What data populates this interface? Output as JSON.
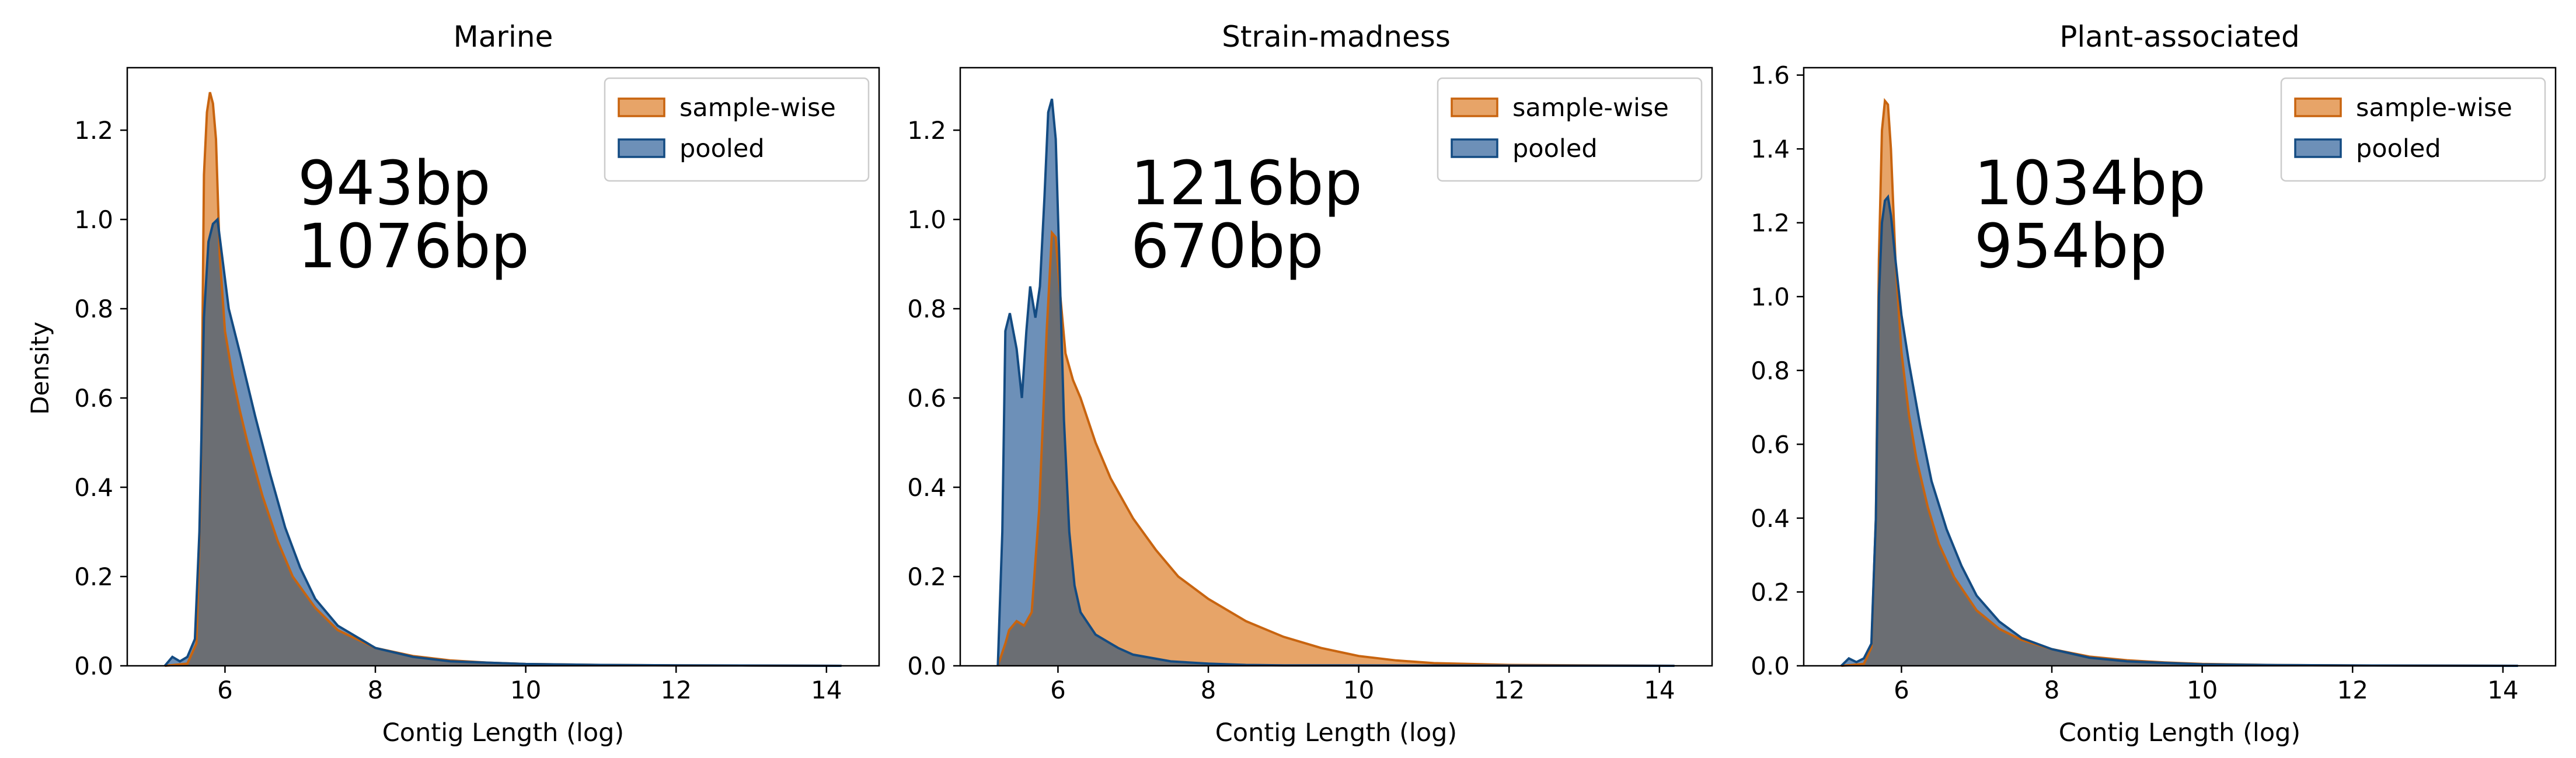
{
  "colors": {
    "sample_wise_fill": "#e7a468",
    "sample_wise_line": "#c8640f",
    "pooled_fill": "#6d90b8",
    "pooled_line": "#134b82",
    "overlap": "#6b6e73"
  },
  "shared": {
    "ylabel": "Density",
    "xlabel": "Contig Length (log)",
    "legend": [
      "sample-wise",
      "pooled"
    ]
  },
  "chart_data": [
    {
      "type": "area",
      "title": "Marine",
      "xlabel": "Contig Length (log)",
      "ylabel": "Density",
      "xlim": [
        4.7,
        14.7
      ],
      "ylim": [
        0,
        1.34
      ],
      "xticks": [
        6,
        8,
        10,
        12,
        14
      ],
      "yticks": [
        0.0,
        0.2,
        0.4,
        0.6,
        0.8,
        1.0,
        1.2
      ],
      "ytick_labels": [
        "0.0",
        "0.2",
        "0.4",
        "0.6",
        "0.8",
        "1.0",
        "1.2"
      ],
      "legend_position": "top-right",
      "annotations": [
        {
          "text": "943bp",
          "series": "sample-wise"
        },
        {
          "text": "1076bp",
          "series": "pooled"
        }
      ],
      "series": [
        {
          "name": "sample-wise",
          "x": [
            5.2,
            5.5,
            5.62,
            5.68,
            5.72,
            5.76,
            5.8,
            5.84,
            5.88,
            5.93,
            6.0,
            6.1,
            6.2,
            6.3,
            6.5,
            6.7,
            6.9,
            7.2,
            7.5,
            8.0,
            8.5,
            9.0,
            9.5,
            10.0,
            11.0,
            12.0,
            13.0,
            14.2
          ],
          "y": [
            0.0,
            0.005,
            0.05,
            0.4,
            1.1,
            1.24,
            1.285,
            1.26,
            1.18,
            0.92,
            0.75,
            0.65,
            0.57,
            0.5,
            0.38,
            0.28,
            0.2,
            0.13,
            0.08,
            0.04,
            0.022,
            0.012,
            0.007,
            0.004,
            0.002,
            0.001,
            0.0005,
            0.0
          ]
        },
        {
          "name": "pooled",
          "x": [
            5.2,
            5.3,
            5.4,
            5.5,
            5.6,
            5.66,
            5.72,
            5.78,
            5.84,
            5.9,
            5.96,
            6.05,
            6.2,
            6.4,
            6.6,
            6.8,
            7.0,
            7.2,
            7.5,
            8.0,
            8.5,
            9.0,
            10.0,
            11.0,
            12.0,
            14.2
          ],
          "y": [
            0.0,
            0.02,
            0.01,
            0.02,
            0.06,
            0.3,
            0.78,
            0.95,
            0.99,
            1.0,
            0.92,
            0.8,
            0.7,
            0.56,
            0.43,
            0.31,
            0.22,
            0.15,
            0.09,
            0.04,
            0.02,
            0.01,
            0.004,
            0.002,
            0.001,
            0.0
          ]
        }
      ]
    },
    {
      "type": "area",
      "title": "Strain-madness",
      "xlabel": "Contig Length (log)",
      "ylabel": "",
      "xlim": [
        4.7,
        14.7
      ],
      "ylim": [
        0,
        1.34
      ],
      "xticks": [
        6,
        8,
        10,
        12,
        14
      ],
      "yticks": [
        0.0,
        0.2,
        0.4,
        0.6,
        0.8,
        1.0,
        1.2
      ],
      "ytick_labels": [
        "0.0",
        "0.2",
        "0.4",
        "0.6",
        "0.8",
        "1.0",
        "1.2"
      ],
      "legend_position": "top-right",
      "annotations": [
        {
          "text": "1216bp",
          "series": "sample-wise"
        },
        {
          "text": "670bp",
          "series": "pooled"
        }
      ],
      "series": [
        {
          "name": "sample-wise",
          "x": [
            5.2,
            5.3,
            5.35,
            5.45,
            5.55,
            5.65,
            5.75,
            5.85,
            5.92,
            5.97,
            6.02,
            6.1,
            6.2,
            6.3,
            6.5,
            6.7,
            7.0,
            7.3,
            7.6,
            8.0,
            8.5,
            9.0,
            9.5,
            10.0,
            10.5,
            11.0,
            12.0,
            13.0,
            14.2
          ],
          "y": [
            0.0,
            0.05,
            0.08,
            0.1,
            0.09,
            0.12,
            0.35,
            0.75,
            0.97,
            0.96,
            0.85,
            0.7,
            0.64,
            0.6,
            0.5,
            0.42,
            0.33,
            0.26,
            0.2,
            0.15,
            0.1,
            0.065,
            0.04,
            0.022,
            0.012,
            0.006,
            0.002,
            0.001,
            0.0
          ]
        },
        {
          "name": "pooled",
          "x": [
            5.2,
            5.26,
            5.3,
            5.36,
            5.45,
            5.52,
            5.58,
            5.63,
            5.7,
            5.76,
            5.82,
            5.87,
            5.92,
            5.97,
            6.02,
            6.08,
            6.15,
            6.22,
            6.3,
            6.5,
            6.8,
            7.0,
            7.5,
            8.0,
            8.5,
            9.0,
            14.2
          ],
          "y": [
            0.0,
            0.3,
            0.75,
            0.79,
            0.71,
            0.6,
            0.75,
            0.85,
            0.78,
            0.85,
            1.05,
            1.24,
            1.27,
            1.18,
            0.9,
            0.55,
            0.3,
            0.18,
            0.12,
            0.07,
            0.04,
            0.025,
            0.01,
            0.005,
            0.002,
            0.001,
            0.0
          ]
        }
      ]
    },
    {
      "type": "area",
      "title": "Plant-associated",
      "xlabel": "Contig Length (log)",
      "ylabel": "",
      "xlim": [
        4.7,
        14.7
      ],
      "ylim": [
        0,
        1.62
      ],
      "xticks": [
        6,
        8,
        10,
        12,
        14
      ],
      "yticks": [
        0.0,
        0.2,
        0.4,
        0.6,
        0.8,
        1.0,
        1.2,
        1.4,
        1.6
      ],
      "ytick_labels": [
        "0.0",
        "0.2",
        "0.4",
        "0.6",
        "0.8",
        "1.0",
        "1.2",
        "1.4",
        "1.6"
      ],
      "legend_position": "top-right",
      "annotations": [
        {
          "text": "1034bp",
          "series": "sample-wise"
        },
        {
          "text": "954bp",
          "series": "pooled"
        }
      ],
      "series": [
        {
          "name": "sample-wise",
          "x": [
            5.2,
            5.5,
            5.6,
            5.66,
            5.7,
            5.74,
            5.78,
            5.82,
            5.86,
            5.92,
            6.0,
            6.1,
            6.2,
            6.35,
            6.5,
            6.7,
            7.0,
            7.3,
            7.6,
            8.0,
            8.5,
            9.0,
            9.5,
            10.0,
            11.0,
            12.0,
            13.0,
            14.2
          ],
          "y": [
            0.0,
            0.005,
            0.05,
            0.4,
            1.1,
            1.45,
            1.53,
            1.52,
            1.4,
            1.1,
            0.85,
            0.68,
            0.56,
            0.43,
            0.33,
            0.24,
            0.15,
            0.1,
            0.07,
            0.045,
            0.025,
            0.015,
            0.009,
            0.005,
            0.002,
            0.001,
            0.0005,
            0.0
          ]
        },
        {
          "name": "pooled",
          "x": [
            5.2,
            5.3,
            5.4,
            5.5,
            5.6,
            5.66,
            5.7,
            5.74,
            5.78,
            5.82,
            5.86,
            5.92,
            6.0,
            6.1,
            6.25,
            6.4,
            6.6,
            6.8,
            7.0,
            7.3,
            7.6,
            8.0,
            8.5,
            9.0,
            10.0,
            11.0,
            12.0,
            14.2
          ],
          "y": [
            0.0,
            0.02,
            0.01,
            0.02,
            0.06,
            0.4,
            1.0,
            1.2,
            1.26,
            1.27,
            1.22,
            1.1,
            0.95,
            0.82,
            0.65,
            0.5,
            0.37,
            0.27,
            0.19,
            0.12,
            0.075,
            0.045,
            0.022,
            0.012,
            0.004,
            0.002,
            0.001,
            0.0
          ]
        }
      ]
    }
  ]
}
